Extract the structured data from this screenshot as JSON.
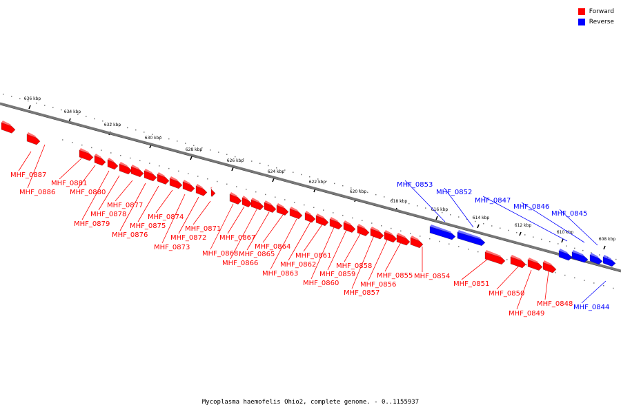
{
  "legend": {
    "forward": {
      "label": "Forward",
      "color": "#ff0000"
    },
    "reverse": {
      "label": "Reverse",
      "color": "#0000ff"
    }
  },
  "footer": {
    "title": "Mycoplasma haemofelis Ohio2, complete genome. - 0..1155937"
  },
  "ticks": [
    "636 kbp",
    "634 kbp",
    "632 kbp",
    "630 kbp",
    "628 kbp",
    "626 kbp",
    "624 kbp",
    "622 kbp",
    "620 kbp",
    "618 kbp",
    "616 kbp",
    "614 kbp",
    "612 kbp",
    "610 kbp",
    "608 kbp"
  ],
  "genes": [
    {
      "name": "MHF_0887",
      "strand": "forward"
    },
    {
      "name": "MHF_0886",
      "strand": "forward"
    },
    {
      "name": "MHF_0881",
      "strand": "forward"
    },
    {
      "name": "MHF_0880",
      "strand": "forward"
    },
    {
      "name": "MHF_0879",
      "strand": "forward"
    },
    {
      "name": "MHF_0878",
      "strand": "forward"
    },
    {
      "name": "MHF_0877",
      "strand": "forward"
    },
    {
      "name": "MHF_0876",
      "strand": "forward"
    },
    {
      "name": "MHF_0875",
      "strand": "forward"
    },
    {
      "name": "MHF_0874",
      "strand": "forward"
    },
    {
      "name": "MHF_0873",
      "strand": "forward"
    },
    {
      "name": "MHF_0872",
      "strand": "forward"
    },
    {
      "name": "MHF_0871",
      "strand": "forward"
    },
    {
      "name": "MHF_0868",
      "strand": "forward"
    },
    {
      "name": "MHF_0867",
      "strand": "forward"
    },
    {
      "name": "MHF_0866",
      "strand": "forward"
    },
    {
      "name": "MHF_0865",
      "strand": "forward"
    },
    {
      "name": "MHF_0864",
      "strand": "forward"
    },
    {
      "name": "MHF_0863",
      "strand": "forward"
    },
    {
      "name": "MHF_0862",
      "strand": "forward"
    },
    {
      "name": "MHF_0861",
      "strand": "forward"
    },
    {
      "name": "MHF_0860",
      "strand": "forward"
    },
    {
      "name": "MHF_0859",
      "strand": "forward"
    },
    {
      "name": "MHF_0858",
      "strand": "forward"
    },
    {
      "name": "MHF_0857",
      "strand": "forward"
    },
    {
      "name": "MHF_0856",
      "strand": "forward"
    },
    {
      "name": "MHF_0855",
      "strand": "forward"
    },
    {
      "name": "MHF_0854",
      "strand": "forward"
    },
    {
      "name": "MHF_0853",
      "strand": "reverse"
    },
    {
      "name": "MHF_0852",
      "strand": "reverse"
    },
    {
      "name": "MHF_0851",
      "strand": "forward"
    },
    {
      "name": "MHF_0850",
      "strand": "forward"
    },
    {
      "name": "MHF_0849",
      "strand": "forward"
    },
    {
      "name": "MHF_0848",
      "strand": "forward"
    },
    {
      "name": "MHF_0847",
      "strand": "reverse"
    },
    {
      "name": "MHF_0846",
      "strand": "reverse"
    },
    {
      "name": "MHF_0845",
      "strand": "reverse"
    },
    {
      "name": "MHF_0844",
      "strand": "reverse"
    }
  ]
}
